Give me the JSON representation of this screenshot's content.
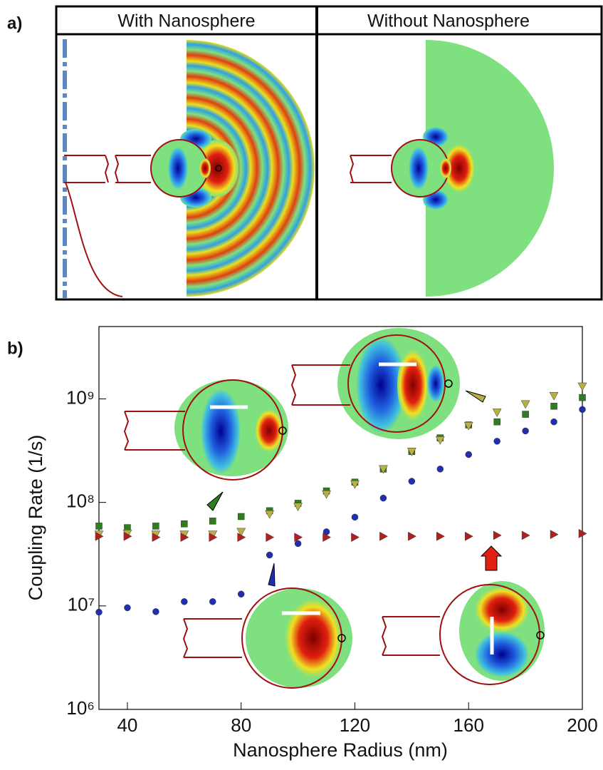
{
  "panel_a": {
    "label": "a)",
    "headers": [
      "With Nanosphere",
      "Without Nanosphere"
    ]
  },
  "chart_data": {
    "type": "scatter",
    "panel_label": "b)",
    "x_label": "Nanosphere Radius (nm)",
    "y_label": "Coupling Rate (1/s)",
    "log_y": true,
    "x": [
      30,
      40,
      50,
      60,
      70,
      80,
      90,
      100,
      110,
      120,
      130,
      140,
      150,
      160,
      170,
      180,
      190,
      200
    ],
    "series": [
      {
        "color": "#1f2fb0",
        "marker": "circle",
        "values": [
          8700000,
          9600000,
          8800000,
          11000000,
          11000000,
          13000000,
          31000000,
          40000000,
          52000000,
          72000000,
          110000000,
          160000000,
          210000000,
          290000000,
          390000000,
          490000000,
          600000000,
          790000000
        ]
      },
      {
        "color": "#2e7d1e",
        "marker": "square",
        "values": [
          59000000,
          57000000,
          59000000,
          62000000,
          66000000,
          73000000,
          83000000,
          98000000,
          129000000,
          157000000,
          210000000,
          310000000,
          420000000,
          560000000,
          600000000,
          710000000,
          850000000,
          1030000000
        ]
      },
      {
        "color": "#b8b040",
        "marker": "triangle-down",
        "values": [
          49000000,
          50000000,
          49000000,
          49000000,
          49000000,
          52000000,
          77000000,
          91000000,
          120000000,
          150000000,
          210000000,
          310000000,
          400000000,
          550000000,
          740000000,
          890000000,
          1070000000,
          1320000000
        ]
      },
      {
        "color": "#b02020",
        "marker": "triangle-right",
        "values": [
          47000000,
          47000000,
          46000000,
          46000000,
          46000000,
          46000000,
          46000000,
          46000000,
          46000000,
          46000000,
          47000000,
          47000000,
          47000000,
          47000000,
          48000000,
          48000000,
          49000000,
          50000000
        ]
      }
    ],
    "xlim": [
      30,
      200
    ],
    "xticks": [
      40,
      80,
      120,
      160,
      200
    ],
    "ylim": [
      1000000,
      5000000000
    ],
    "yticks": [
      {
        "value": 1000000,
        "label": "10⁶"
      },
      {
        "value": 10000000,
        "label": "10⁷"
      },
      {
        "value": 100000000,
        "label": "10⁸"
      },
      {
        "value": 1000000000,
        "label": "10⁹"
      }
    ]
  }
}
